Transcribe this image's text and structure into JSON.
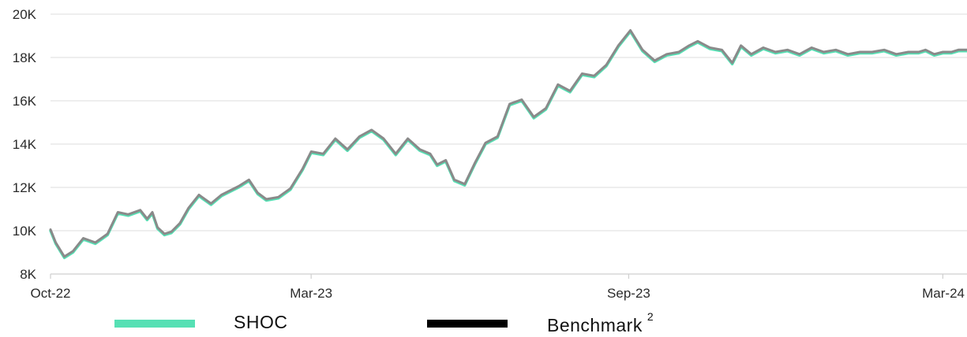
{
  "chart_data": {
    "type": "line",
    "title": "",
    "xlabel": "",
    "ylabel": "",
    "ylim": [
      8000,
      20000
    ],
    "yticks": [
      8000,
      10000,
      12000,
      14000,
      16000,
      18000,
      20000
    ],
    "ytick_labels": [
      "8K",
      "10K",
      "12K",
      "14K",
      "16K",
      "18K",
      "20K"
    ],
    "xticks": [
      "2022-10-01",
      "2023-03-01",
      "2023-09-01",
      "2024-03-01"
    ],
    "xtick_labels": [
      "Oct-22",
      "Mar-23",
      "Sep-23",
      "Mar-24"
    ],
    "xlim": [
      "2022-10-01",
      "2024-03-15"
    ],
    "grid": true,
    "legend_position": "bottom",
    "x": [
      "2022-10-01",
      "2022-10-04",
      "2022-10-09",
      "2022-10-14",
      "2022-10-20",
      "2022-10-27",
      "2022-11-03",
      "2022-11-09",
      "2022-11-15",
      "2022-11-22",
      "2022-11-26",
      "2022-11-29",
      "2022-12-02",
      "2022-12-06",
      "2022-12-10",
      "2022-12-15",
      "2022-12-20",
      "2022-12-26",
      "2023-01-02",
      "2023-01-08",
      "2023-01-13",
      "2023-01-18",
      "2023-01-24",
      "2023-01-29",
      "2023-02-03",
      "2023-02-10",
      "2023-02-17",
      "2023-02-24",
      "2023-03-01",
      "2023-03-08",
      "2023-03-15",
      "2023-03-22",
      "2023-03-29",
      "2023-04-05",
      "2023-04-12",
      "2023-04-19",
      "2023-04-26",
      "2023-05-03",
      "2023-05-09",
      "2023-05-13",
      "2023-05-18",
      "2023-05-23",
      "2023-05-29",
      "2023-06-04",
      "2023-06-10",
      "2023-06-17",
      "2023-06-24",
      "2023-07-01",
      "2023-07-08",
      "2023-07-15",
      "2023-07-22",
      "2023-07-29",
      "2023-08-05",
      "2023-08-12",
      "2023-08-19",
      "2023-08-26",
      "2023-09-02",
      "2023-09-09",
      "2023-09-16",
      "2023-09-23",
      "2023-09-30",
      "2023-10-06",
      "2023-10-11",
      "2023-10-18",
      "2023-10-25",
      "2023-10-31",
      "2023-11-05",
      "2023-11-11",
      "2023-11-18",
      "2023-11-25",
      "2023-12-02",
      "2023-12-09",
      "2023-12-16",
      "2023-12-23",
      "2023-12-30",
      "2024-01-06",
      "2024-01-13",
      "2024-01-20",
      "2024-01-27",
      "2024-02-03",
      "2024-02-10",
      "2024-02-16",
      "2024-02-20",
      "2024-02-25",
      "2024-03-01",
      "2024-03-06",
      "2024-03-10",
      "2024-03-15"
    ],
    "series": [
      {
        "name": "SHOC",
        "color": "#56e0b4",
        "values": [
          10000,
          9400,
          8750,
          9000,
          9600,
          9400,
          9800,
          10800,
          10700,
          10900,
          10500,
          10800,
          10100,
          9800,
          9900,
          10300,
          11000,
          11600,
          11200,
          11600,
          11800,
          12000,
          12300,
          11700,
          11400,
          11500,
          11900,
          12800,
          13600,
          13500,
          14200,
          13700,
          14300,
          14600,
          14200,
          13500,
          14200,
          13700,
          13500,
          13000,
          13200,
          12300,
          12100,
          13100,
          14000,
          14300,
          15800,
          16000,
          15200,
          15600,
          16700,
          16400,
          17200,
          17100,
          17600,
          18500,
          19200,
          18300,
          17800,
          18100,
          18200,
          18500,
          18700,
          18400,
          18300,
          17700,
          18500,
          18100,
          18400,
          18200,
          18300,
          18100,
          18400,
          18200,
          18300,
          18100,
          18200,
          18200,
          18300,
          18100,
          18200,
          18200,
          18300,
          18100,
          18200,
          18200,
          18300,
          18300
        ]
      },
      {
        "name": "Benchmark",
        "color": "#000000",
        "values": [
          10000,
          9400,
          8750,
          9000,
          9600,
          9400,
          9800,
          10800,
          10700,
          10900,
          10500,
          10800,
          10100,
          9800,
          9900,
          10300,
          11000,
          11600,
          11200,
          11600,
          11800,
          12000,
          12300,
          11700,
          11400,
          11500,
          11900,
          12800,
          13600,
          13500,
          14200,
          13700,
          14300,
          14600,
          14200,
          13500,
          14200,
          13700,
          13500,
          13000,
          13200,
          12300,
          12100,
          13100,
          14000,
          14300,
          15800,
          16000,
          15200,
          15600,
          16700,
          16400,
          17200,
          17100,
          17600,
          18500,
          19200,
          18300,
          17800,
          18100,
          18200,
          18500,
          18700,
          18400,
          18300,
          17700,
          18500,
          18100,
          18400,
          18200,
          18300,
          18100,
          18400,
          18200,
          18300,
          18100,
          18200,
          18200,
          18300,
          18100,
          18200,
          18200,
          18300,
          18100,
          18200,
          18200,
          18300,
          18300
        ]
      }
    ]
  },
  "legend": {
    "items": [
      {
        "label": "SHOC",
        "color": "#56e0b4",
        "superscript": ""
      },
      {
        "label": "Benchmark",
        "color": "#000000",
        "superscript": "2"
      }
    ]
  }
}
